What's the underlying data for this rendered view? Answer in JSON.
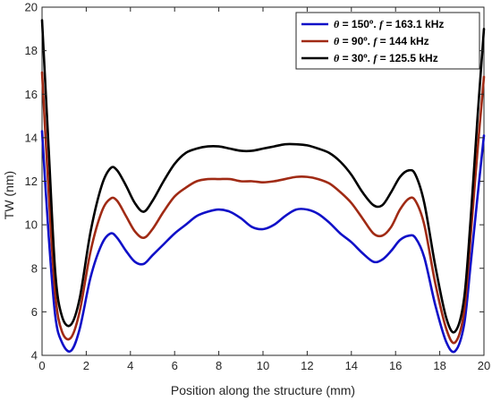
{
  "chart_data": {
    "type": "line",
    "xlabel": "Position along the structure (mm)",
    "ylabel": "TW (nm)",
    "xlim": [
      0,
      20
    ],
    "ylim": [
      4,
      20
    ],
    "xticks": [
      "0",
      "2",
      "4",
      "6",
      "8",
      "10",
      "12",
      "14",
      "16",
      "18",
      "20"
    ],
    "yticks": [
      "4",
      "6",
      "8",
      "10",
      "12",
      "14",
      "16",
      "18",
      "20"
    ],
    "grid": false,
    "legend_position": "top-right",
    "series": [
      {
        "name": "θ = 150º. f = 163.1 kHz",
        "legend_parts": {
          "theta_symbol": "θ",
          "theta_value": " = 150º. ",
          "f_symbol": "f",
          "f_value": " = 163.1 kHz"
        },
        "color": "#1010c8",
        "x": [
          0,
          0.3,
          0.6,
          0.9,
          1.3,
          1.7,
          2.2,
          2.7,
          3.1,
          3.4,
          3.8,
          4.2,
          4.6,
          5.0,
          5.5,
          6.0,
          6.5,
          7.0,
          7.5,
          8.0,
          8.5,
          9.0,
          9.5,
          10.0,
          10.5,
          11.0,
          11.5,
          12.0,
          12.5,
          13.0,
          13.5,
          14.0,
          14.5,
          15.0,
          15.4,
          15.8,
          16.2,
          16.6,
          16.9,
          17.3,
          17.8,
          18.3,
          18.7,
          19.1,
          19.4,
          19.7,
          20.0
        ],
        "y": [
          14.3,
          9.5,
          5.8,
          4.6,
          4.2,
          5.2,
          7.6,
          9.1,
          9.6,
          9.4,
          8.8,
          8.3,
          8.2,
          8.6,
          9.1,
          9.6,
          10.0,
          10.4,
          10.6,
          10.7,
          10.6,
          10.3,
          9.9,
          9.8,
          10.0,
          10.4,
          10.7,
          10.7,
          10.5,
          10.1,
          9.6,
          9.2,
          8.7,
          8.3,
          8.4,
          8.8,
          9.3,
          9.5,
          9.4,
          8.5,
          6.3,
          4.6,
          4.2,
          5.4,
          8.2,
          11.2,
          14.1
        ]
      },
      {
        "name": "θ = 90º. f = 144 kHz",
        "legend_parts": {
          "theta_symbol": "θ",
          "theta_value": " = 90º. ",
          "f_symbol": "f",
          "f_value": " = 144 kHz"
        },
        "color": "#a02a14",
        "x": [
          0,
          0.3,
          0.6,
          0.9,
          1.3,
          1.7,
          2.2,
          2.7,
          3.1,
          3.4,
          3.8,
          4.2,
          4.6,
          5.0,
          5.5,
          6.0,
          6.5,
          7.0,
          7.5,
          8.0,
          8.5,
          9.0,
          9.5,
          10.0,
          10.5,
          11.0,
          11.5,
          12.0,
          12.5,
          13.0,
          13.5,
          14.0,
          14.5,
          15.0,
          15.4,
          15.8,
          16.2,
          16.6,
          16.9,
          17.3,
          17.8,
          18.3,
          18.7,
          19.1,
          19.4,
          19.7,
          20.0
        ],
        "y": [
          17.0,
          11.5,
          6.8,
          5.1,
          4.8,
          6.0,
          8.8,
          10.6,
          11.2,
          11.1,
          10.4,
          9.7,
          9.4,
          9.8,
          10.6,
          11.3,
          11.7,
          12.0,
          12.1,
          12.1,
          12.1,
          12.0,
          12.0,
          11.95,
          12.0,
          12.1,
          12.2,
          12.2,
          12.1,
          11.9,
          11.5,
          11.0,
          10.3,
          9.6,
          9.5,
          9.9,
          10.7,
          11.2,
          11.1,
          10.0,
          7.3,
          5.2,
          4.6,
          6.0,
          9.5,
          13.3,
          16.8
        ]
      },
      {
        "name": "θ = 30º. f = 125.5 kHz",
        "legend_parts": {
          "theta_symbol": "θ",
          "theta_value": " = 30º. ",
          "f_symbol": "f",
          "f_value": " = 125.5 kHz"
        },
        "color": "#000000",
        "x": [
          0,
          0.3,
          0.6,
          0.9,
          1.3,
          1.7,
          2.2,
          2.7,
          3.1,
          3.4,
          3.8,
          4.2,
          4.6,
          5.0,
          5.5,
          6.0,
          6.5,
          7.0,
          7.5,
          8.0,
          8.5,
          9.0,
          9.5,
          10.0,
          10.5,
          11.0,
          11.5,
          12.0,
          12.5,
          13.0,
          13.5,
          14.0,
          14.5,
          15.0,
          15.4,
          15.8,
          16.2,
          16.6,
          16.9,
          17.3,
          17.8,
          18.3,
          18.7,
          19.1,
          19.4,
          19.7,
          20.0
        ],
        "y": [
          19.4,
          13.5,
          7.8,
          5.8,
          5.4,
          6.6,
          9.7,
          11.8,
          12.6,
          12.5,
          11.8,
          11.0,
          10.6,
          11.1,
          12.0,
          12.8,
          13.3,
          13.5,
          13.6,
          13.6,
          13.5,
          13.4,
          13.4,
          13.5,
          13.6,
          13.7,
          13.7,
          13.65,
          13.5,
          13.3,
          12.9,
          12.3,
          11.5,
          10.9,
          10.9,
          11.5,
          12.2,
          12.5,
          12.3,
          11.0,
          8.1,
          5.7,
          5.1,
          6.6,
          10.3,
          14.8,
          19.0
        ]
      }
    ]
  }
}
